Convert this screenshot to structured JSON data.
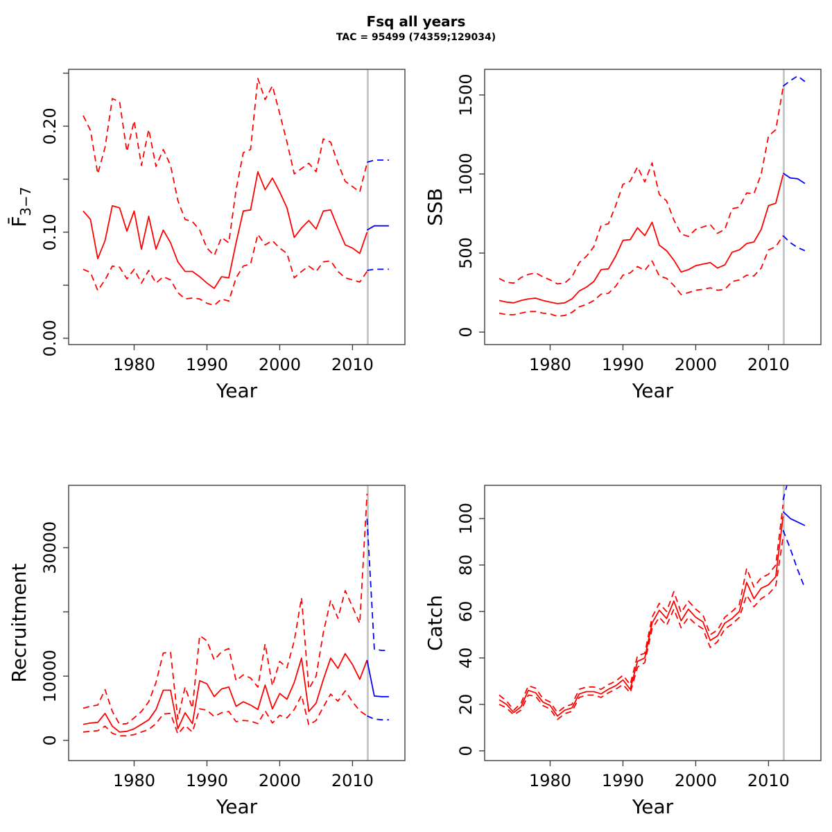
{
  "header": {
    "title": "Fsq all years",
    "subtitle": "TAC = 95499 (74359;129034)"
  },
  "colors": {
    "historical": "#ff0000",
    "forecast": "#0000ff",
    "divider": "#c8c8c8",
    "frame": "#3c3c3c",
    "text": "#000000"
  },
  "x_axis": {
    "label": "Year",
    "ticks": [
      1980,
      1990,
      2000,
      2010
    ],
    "lim": [
      1971.0,
      2017.2
    ]
  },
  "divider_year": 2012.1,
  "years": [
    1973,
    1974,
    1975,
    1976,
    1977,
    1978,
    1979,
    1980,
    1981,
    1982,
    1983,
    1984,
    1985,
    1986,
    1987,
    1988,
    1989,
    1990,
    1991,
    1992,
    1993,
    1994,
    1995,
    1996,
    1997,
    1998,
    1999,
    2000,
    2001,
    2002,
    2003,
    2004,
    2005,
    2006,
    2007,
    2008,
    2009,
    2010,
    2011,
    2012
  ],
  "forecast_years": [
    2012,
    2013,
    2014,
    2015
  ],
  "chart_data": [
    {
      "id": "f37",
      "type": "line",
      "ylabel": "F̄3−7",
      "ylabel_parts": {
        "main": "F̄",
        "sub": "3−7"
      },
      "ylim": [
        -0.006,
        0.2536
      ],
      "yticks": [
        {
          "v": 0.0,
          "label": "0.00"
        },
        {
          "v": 0.05,
          "label": ""
        },
        {
          "v": 0.1,
          "label": "0.10"
        },
        {
          "v": 0.15,
          "label": ""
        },
        {
          "v": 0.2,
          "label": "0.20"
        },
        {
          "v": 0.25,
          "label": ""
        }
      ],
      "series": {
        "median": [
          0.12,
          0.112,
          0.075,
          0.092,
          0.125,
          0.123,
          0.101,
          0.12,
          0.084,
          0.115,
          0.084,
          0.102,
          0.09,
          0.072,
          0.063,
          0.063,
          0.058,
          0.052,
          0.047,
          0.058,
          0.057,
          0.09,
          0.12,
          0.121,
          0.157,
          0.14,
          0.151,
          0.138,
          0.123,
          0.095,
          0.104,
          0.111,
          0.103,
          0.12,
          0.121,
          0.104,
          0.088,
          0.085,
          0.08,
          0.1
        ],
        "upper": [
          0.21,
          0.196,
          0.155,
          0.18,
          0.226,
          0.223,
          0.176,
          0.205,
          0.163,
          0.197,
          0.162,
          0.178,
          0.163,
          0.13,
          0.112,
          0.11,
          0.102,
          0.085,
          0.078,
          0.095,
          0.09,
          0.14,
          0.175,
          0.178,
          0.245,
          0.225,
          0.238,
          0.212,
          0.185,
          0.155,
          0.16,
          0.165,
          0.157,
          0.188,
          0.185,
          0.165,
          0.148,
          0.143,
          0.138,
          0.165
        ],
        "lower": [
          0.065,
          0.062,
          0.045,
          0.055,
          0.068,
          0.067,
          0.056,
          0.065,
          0.052,
          0.064,
          0.052,
          0.058,
          0.055,
          0.043,
          0.037,
          0.038,
          0.037,
          0.033,
          0.031,
          0.037,
          0.035,
          0.057,
          0.068,
          0.07,
          0.098,
          0.088,
          0.092,
          0.085,
          0.08,
          0.057,
          0.063,
          0.068,
          0.063,
          0.072,
          0.073,
          0.063,
          0.057,
          0.055,
          0.053,
          0.063
        ],
        "forecast_median": [
          0.102,
          0.106,
          0.106,
          0.106
        ],
        "forecast_upper": [
          0.166,
          0.168,
          0.168,
          0.168
        ],
        "forecast_lower": [
          0.064,
          0.065,
          0.065,
          0.065
        ]
      }
    },
    {
      "id": "ssb",
      "type": "line",
      "ylabel": "SSB",
      "ylim": [
        -79,
        1662
      ],
      "yticks": [
        {
          "v": 0,
          "label": "0"
        },
        {
          "v": 500,
          "label": "500"
        },
        {
          "v": 1000,
          "label": "1000"
        },
        {
          "v": 1500,
          "label": "1500"
        }
      ],
      "series": {
        "median": [
          200,
          190,
          185,
          200,
          210,
          215,
          200,
          190,
          180,
          185,
          210,
          260,
          285,
          320,
          395,
          400,
          480,
          580,
          585,
          660,
          610,
          695,
          550,
          515,
          455,
          380,
          395,
          420,
          430,
          440,
          405,
          425,
          505,
          520,
          560,
          570,
          650,
          800,
          815,
          995
        ],
        "upper": [
          340,
          315,
          310,
          345,
          365,
          375,
          350,
          330,
          305,
          310,
          350,
          440,
          480,
          540,
          675,
          685,
          800,
          935,
          955,
          1045,
          950,
          1070,
          870,
          830,
          710,
          620,
          605,
          650,
          665,
          680,
          625,
          650,
          780,
          790,
          880,
          875,
          1000,
          1240,
          1280,
          1545
        ],
        "lower": [
          120,
          110,
          110,
          120,
          130,
          130,
          120,
          115,
          100,
          105,
          125,
          160,
          175,
          200,
          240,
          245,
          290,
          360,
          375,
          415,
          390,
          450,
          355,
          340,
          295,
          237,
          250,
          265,
          270,
          280,
          265,
          270,
          320,
          330,
          360,
          355,
          405,
          520,
          540,
          610
        ],
        "forecast_median": [
          1005,
          975,
          970,
          940
        ],
        "forecast_upper": [
          1555,
          1590,
          1620,
          1585
        ],
        "forecast_lower": [
          610,
          565,
          535,
          515
        ]
      }
    },
    {
      "id": "recruitment",
      "type": "line",
      "ylabel": "Recruitment",
      "ylim": [
        -3150,
        39700
      ],
      "yticks": [
        {
          "v": 0,
          "label": "0"
        },
        {
          "v": 10000,
          "label": "10000"
        },
        {
          "v": 20000,
          "label": ""
        },
        {
          "v": 30000,
          "label": "30000"
        }
      ],
      "series": {
        "median": [
          2500,
          2700,
          2800,
          4200,
          2200,
          1300,
          1400,
          1800,
          2500,
          3200,
          4800,
          7800,
          7800,
          1800,
          4300,
          2600,
          9300,
          8800,
          6800,
          8000,
          8300,
          5300,
          6000,
          5500,
          4800,
          8600,
          4900,
          7300,
          6400,
          9000,
          12800,
          4500,
          5800,
          9500,
          12800,
          11200,
          13500,
          11800,
          9500,
          12500
        ],
        "upper": [
          5000,
          5300,
          5500,
          7900,
          4500,
          2500,
          2600,
          3500,
          4500,
          6000,
          9000,
          13600,
          13700,
          3300,
          8300,
          5000,
          16300,
          15500,
          12500,
          13800,
          14300,
          9300,
          10200,
          9700,
          8300,
          15000,
          8500,
          12300,
          11300,
          15500,
          22200,
          8000,
          10000,
          16800,
          21800,
          19000,
          23300,
          20800,
          18200,
          38400
        ],
        "lower": [
          1300,
          1400,
          1500,
          2200,
          1100,
          700,
          700,
          900,
          1300,
          1700,
          2600,
          4100,
          4200,
          1000,
          2300,
          1300,
          4900,
          4700,
          3700,
          4300,
          4500,
          2900,
          3100,
          3000,
          2600,
          4600,
          2700,
          3900,
          3500,
          4800,
          7000,
          2400,
          3100,
          5200,
          7200,
          6100,
          7700,
          6000,
          4600,
          3800
        ],
        "forecast_median": [
          12500,
          6900,
          6800,
          6800
        ],
        "forecast_upper": [
          34500,
          14200,
          14000,
          14000
        ],
        "forecast_lower": [
          3800,
          3300,
          3200,
          3200
        ]
      }
    },
    {
      "id": "catch",
      "type": "line",
      "ylabel": "Catch",
      "ylim": [
        -4.2,
        114.3
      ],
      "yticks": [
        {
          "v": 0,
          "label": "0"
        },
        {
          "v": 20,
          "label": "20"
        },
        {
          "v": 40,
          "label": "40"
        },
        {
          "v": 60,
          "label": "60"
        },
        {
          "v": 80,
          "label": "80"
        },
        {
          "v": 100,
          "label": "100"
        }
      ],
      "series": {
        "median": [
          22,
          20,
          16.5,
          19,
          26,
          25,
          21,
          19.5,
          15,
          17.5,
          18.5,
          24.5,
          25.5,
          25.5,
          24.5,
          26.5,
          28,
          30.5,
          26.5,
          38.5,
          40,
          55,
          60.5,
          57,
          64.5,
          56,
          61,
          57.5,
          55.5,
          47.5,
          49.5,
          55,
          57,
          60,
          72.5,
          65.5,
          70,
          71.5,
          75,
          101
        ],
        "upper": [
          24,
          21.5,
          17.5,
          20.5,
          28,
          27,
          22.5,
          21,
          16.5,
          19,
          20,
          26.5,
          27.5,
          27.5,
          26.5,
          28.5,
          30,
          32.5,
          28.5,
          41,
          42,
          57.5,
          63.5,
          60,
          68.5,
          59.5,
          64.5,
          61,
          58.5,
          50,
          52,
          57.5,
          60,
          63,
          78.5,
          70.5,
          74.5,
          76,
          80,
          106
        ],
        "lower": [
          20,
          18.5,
          15.5,
          17.5,
          24,
          23.5,
          19.5,
          18,
          13.5,
          16,
          17,
          23,
          24,
          24,
          23,
          25,
          26.5,
          28.5,
          25,
          36,
          38,
          52.5,
          57.5,
          54,
          61,
          53,
          57.5,
          54.5,
          52.5,
          44.5,
          47,
          52.5,
          54.5,
          57.5,
          67,
          62,
          65.5,
          67.5,
          71,
          92
        ],
        "forecast_median": [
          103,
          100,
          98.5,
          97
        ],
        "forecast_upper": [
          108,
          120,
          126,
          130
        ],
        "forecast_lower": [
          95,
          87,
          78,
          70
        ]
      }
    }
  ]
}
